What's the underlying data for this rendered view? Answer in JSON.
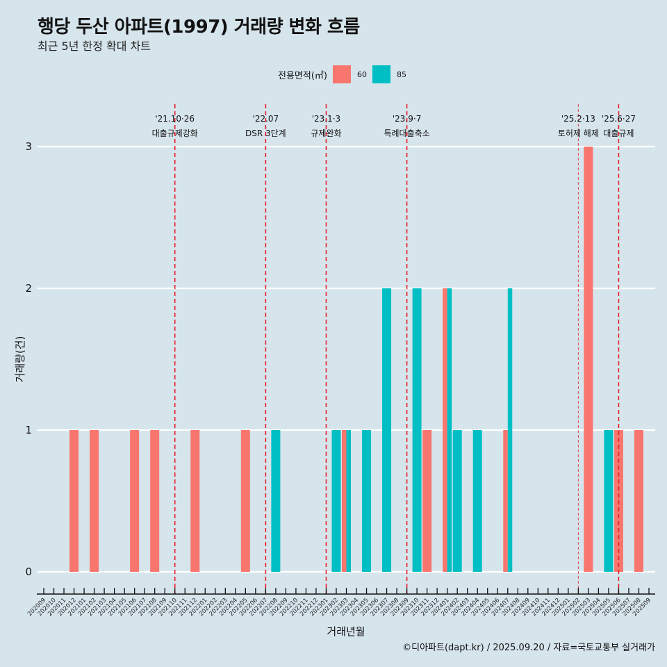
{
  "header": {
    "title": "행당 두산 아파트(1997) 거래량 변화 흐름",
    "subtitle": "최근 5년 한정 확대 차트"
  },
  "legend": {
    "title": "전용면적(㎡)",
    "items": [
      {
        "label": "60",
        "color": "#f8766d"
      },
      {
        "label": "85",
        "color": "#00bfc4"
      }
    ]
  },
  "caption": "©디아파트(dapt.kr) / 2025.09.20 / 자료=국토교통부 실거래가",
  "chart_data": {
    "type": "bar",
    "title": "행당 두산 아파트(1997) 거래량 변화 흐름",
    "subtitle": "최근 5년 한정 확대 차트",
    "xlabel": "거래년월",
    "ylabel": "거래량(건)",
    "ylim": [
      0,
      3
    ],
    "yticks": [
      "0",
      "1",
      "2",
      "3"
    ],
    "grid": true,
    "legend_position": "top",
    "categories": [
      "202009",
      "202010",
      "202011",
      "202012",
      "202101",
      "202102",
      "202103",
      "202104",
      "202105",
      "202106",
      "202107",
      "202108",
      "202109",
      "202110",
      "202111",
      "202112",
      "202201",
      "202202",
      "202203",
      "202204",
      "202205",
      "202206",
      "202207",
      "202208",
      "202209",
      "202210",
      "202211",
      "202212",
      "202301",
      "202302",
      "202303",
      "202304",
      "202305",
      "202306",
      "202307",
      "202308",
      "202309",
      "202310",
      "202311",
      "202312",
      "202401",
      "202402",
      "202403",
      "202404",
      "202405",
      "202406",
      "202407",
      "202408",
      "202409",
      "202410",
      "202411",
      "202412",
      "202501",
      "202502",
      "202503",
      "202504",
      "202505",
      "202506",
      "202507",
      "202508",
      "202509"
    ],
    "series": [
      {
        "name": "60",
        "color": "#f8766d",
        "values": [
          0,
          0,
          0,
          1,
          0,
          1,
          0,
          0,
          0,
          1,
          0,
          1,
          0,
          0,
          0,
          1,
          0,
          0,
          0,
          0,
          1,
          0,
          0,
          0,
          0,
          0,
          0,
          0,
          0,
          0,
          1,
          0,
          0,
          0,
          0,
          0,
          0,
          0,
          1,
          0,
          2,
          0,
          0,
          0,
          0,
          0,
          1,
          0,
          0,
          0,
          0,
          0,
          0,
          0,
          3,
          0,
          0,
          1,
          0,
          1,
          0
        ]
      },
      {
        "name": "85",
        "color": "#00bfc4",
        "values": [
          0,
          0,
          0,
          0,
          0,
          0,
          0,
          0,
          0,
          0,
          0,
          0,
          0,
          0,
          0,
          0,
          0,
          0,
          0,
          0,
          0,
          0,
          0,
          1,
          0,
          0,
          0,
          0,
          0,
          1,
          1,
          0,
          1,
          0,
          2,
          0,
          0,
          2,
          0,
          0,
          2,
          1,
          0,
          1,
          0,
          0,
          2,
          0,
          0,
          0,
          0,
          0,
          0,
          0,
          0,
          0,
          1,
          0,
          0,
          0,
          0
        ]
      }
    ],
    "annotations": [
      {
        "month": "202110",
        "date": "'21.10·26",
        "text": "대출규제강화",
        "style": "dashed"
      },
      {
        "month": "202207",
        "date": "'22.07",
        "text": "DSR 3단계",
        "style": "dashed"
      },
      {
        "month": "202301",
        "date": "'23.1·3",
        "text": "규제완화",
        "style": "dashed"
      },
      {
        "month": "202309",
        "date": "'23.9·7",
        "text": "특례대출축소",
        "style": "dashed"
      },
      {
        "month": "202502",
        "date": "'25.2·13",
        "text": "토허제 해제",
        "style": "dotted"
      },
      {
        "month": "202506",
        "date": "'25.6·27",
        "text": "대출규제",
        "style": "dashed"
      }
    ],
    "line_color": "#e8202a"
  }
}
